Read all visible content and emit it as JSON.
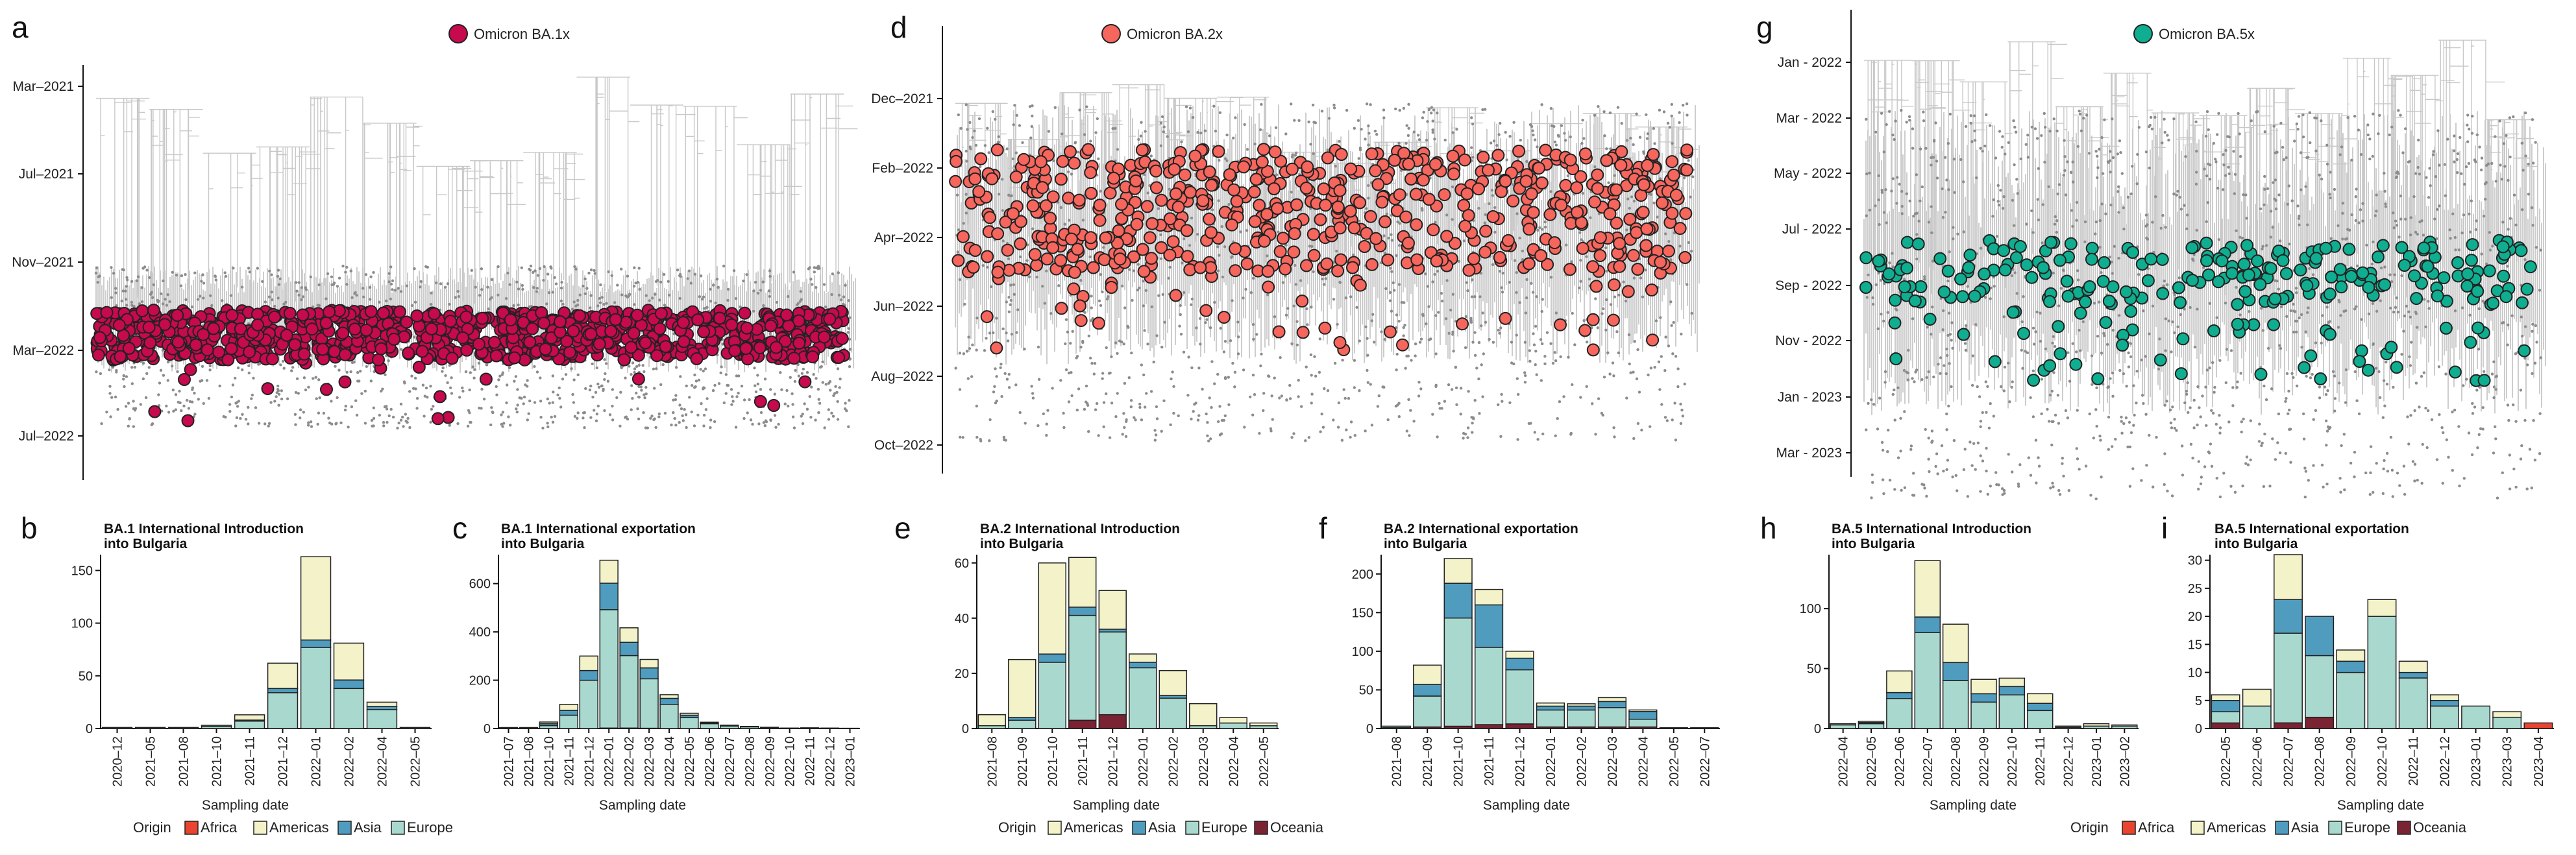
{
  "colors": {
    "Africa": "#e8442f",
    "Americas": "#f3f2c9",
    "Asia": "#4f9cbf",
    "Europe": "#a9d8ce",
    "Oceania": "#7a2333",
    "BA1": "#c7094e",
    "BA2": "#f6665d",
    "BA5": "#0fae90",
    "tree": "#c8c8c8",
    "tip": "#8c8c8c"
  },
  "trees": [
    {
      "letter": "a",
      "legend": "Omicron BA.1x",
      "colorKey": "BA1",
      "ticks": [
        "Mar–2021",
        "Jul–2021",
        "Nov–2021",
        "Mar–2022",
        "Jul–2022"
      ]
    },
    {
      "letter": "d",
      "legend": "Omicron BA.2x",
      "colorKey": "BA2",
      "ticks": [
        "Dec–2021",
        "Feb–2022",
        "Apr–2022",
        "Jun–2022",
        "Aug–2022",
        "Oct–2022"
      ]
    },
    {
      "letter": "g",
      "legend": "Omicron BA.5x",
      "colorKey": "BA5",
      "ticks": [
        "Jan - 2022",
        "Mar - 2022",
        "May - 2022",
        "Jul - 2022",
        "Sep - 2022",
        "Nov - 2022",
        "Jan - 2023",
        "Mar - 2023"
      ]
    }
  ],
  "legend_sets": {
    "abc": {
      "title": "Origin",
      "items": [
        "Africa",
        "Americas",
        "Asia",
        "Europe"
      ]
    },
    "def": {
      "title": "Origin",
      "items": [
        "Americas",
        "Asia",
        "Europe",
        "Oceania"
      ]
    },
    "ghi": {
      "title": "Origin",
      "items": [
        "Africa",
        "Americas",
        "Asia",
        "Europe",
        "Oceania"
      ]
    }
  },
  "xlabel": "Sampling date",
  "chart_data": [
    {
      "letter": "b",
      "type": "bar",
      "stacked": true,
      "title": "BA.1 International Introduction",
      "subtitle": "into Bulgaria",
      "xlabel": "Sampling date",
      "ylim": [
        0,
        165
      ],
      "yticks": [
        0,
        50,
        100,
        150
      ],
      "categories": [
        "2020–12",
        "2021–05",
        "2021–08",
        "2021–10",
        "2021–11",
        "2021–12",
        "2022–01",
        "2022–02",
        "2022–04",
        "2022–05"
      ],
      "series": [
        {
          "name": "Africa",
          "values": [
            0,
            0,
            0,
            0,
            0,
            0,
            0,
            0,
            0,
            0
          ]
        },
        {
          "name": "Europe",
          "values": [
            1,
            1,
            1,
            2,
            7,
            34,
            77,
            38,
            18,
            1
          ]
        },
        {
          "name": "Asia",
          "values": [
            0,
            0,
            0,
            0,
            1,
            4,
            7,
            8,
            3,
            0
          ]
        },
        {
          "name": "Americas",
          "values": [
            0,
            0,
            0,
            1,
            5,
            24,
            79,
            35,
            4,
            0
          ]
        }
      ]
    },
    {
      "letter": "c",
      "type": "bar",
      "stacked": true,
      "title": "BA.1 International exportation",
      "subtitle": "into Bulgaria",
      "xlabel": "Sampling date",
      "ylim": [
        0,
        720
      ],
      "yticks": [
        0,
        200,
        400,
        600
      ],
      "categories": [
        "2021–07",
        "2021–08",
        "2021–10",
        "2021–11",
        "2021–12",
        "2022–01",
        "2022–02",
        "2022–03",
        "2022–04",
        "2022–05",
        "2022–06",
        "2022–07",
        "2022–08",
        "2022–09",
        "2022–10",
        "2022–11",
        "2022–12",
        "2023–01"
      ],
      "series": [
        {
          "name": "Africa",
          "values": [
            0,
            0,
            0,
            0,
            0,
            2,
            2,
            1,
            0,
            0,
            0,
            0,
            0,
            0,
            0,
            0,
            0,
            0
          ]
        },
        {
          "name": "Europe",
          "values": [
            3,
            3,
            12,
            55,
            200,
            490,
            300,
            205,
            100,
            45,
            20,
            10,
            7,
            4,
            2,
            3,
            2,
            1
          ]
        },
        {
          "name": "Asia",
          "values": [
            0,
            0,
            8,
            20,
            40,
            110,
            55,
            45,
            25,
            10,
            3,
            2,
            1,
            0,
            0,
            0,
            0,
            0
          ]
        },
        {
          "name": "Americas",
          "values": [
            1,
            1,
            7,
            25,
            60,
            95,
            60,
            35,
            15,
            8,
            3,
            2,
            1,
            1,
            0,
            0,
            0,
            0
          ]
        }
      ]
    },
    {
      "letter": "e",
      "type": "bar",
      "stacked": true,
      "title": "BA.2 International Introduction",
      "subtitle": "into Bulgaria",
      "xlabel": "Sampling date",
      "ylim": [
        0,
        63
      ],
      "yticks": [
        0,
        20,
        40,
        60
      ],
      "categories": [
        "2021–08",
        "2021–09",
        "2021–10",
        "2021–11",
        "2021–12",
        "2022–01",
        "2022–02",
        "2022–03",
        "2022–04",
        "2022–05"
      ],
      "series": [
        {
          "name": "Oceania",
          "values": [
            0,
            0,
            0,
            3,
            5,
            0,
            0,
            0,
            0,
            0
          ]
        },
        {
          "name": "Europe",
          "values": [
            1,
            3,
            24,
            38,
            30,
            22,
            11,
            1,
            2,
            1
          ]
        },
        {
          "name": "Asia",
          "values": [
            0,
            1,
            3,
            3,
            1,
            2,
            1,
            0,
            0,
            0
          ]
        },
        {
          "name": "Americas",
          "values": [
            4,
            21,
            33,
            18,
            14,
            3,
            9,
            8,
            2,
            1
          ]
        }
      ]
    },
    {
      "letter": "f",
      "type": "bar",
      "stacked": true,
      "title": "BA.2 International exportation",
      "subtitle": "into Bulgaria",
      "xlabel": "Sampling date",
      "ylim": [
        0,
        225
      ],
      "yticks": [
        0,
        50,
        100,
        150,
        200
      ],
      "categories": [
        "2021–08",
        "2021–09",
        "2021–10",
        "2021–11",
        "2021–12",
        "2022–01",
        "2022–02",
        "2022–03",
        "2022–04",
        "2022–05",
        "2022–07"
      ],
      "series": [
        {
          "name": "Oceania",
          "values": [
            1,
            2,
            3,
            5,
            6,
            2,
            2,
            2,
            2,
            0,
            0
          ]
        },
        {
          "name": "Europe",
          "values": [
            2,
            40,
            140,
            100,
            70,
            22,
            22,
            25,
            10,
            1,
            1
          ]
        },
        {
          "name": "Asia",
          "values": [
            0,
            15,
            45,
            55,
            15,
            5,
            5,
            8,
            10,
            0,
            0
          ]
        },
        {
          "name": "Americas",
          "values": [
            0,
            25,
            32,
            20,
            9,
            4,
            3,
            5,
            2,
            0,
            0
          ]
        }
      ]
    },
    {
      "letter": "h",
      "type": "bar",
      "stacked": true,
      "title": "BA.5 International Introduction",
      "subtitle": "into Bulgaria",
      "xlabel": "Sampling date",
      "ylim": [
        0,
        145
      ],
      "yticks": [
        0,
        50,
        100
      ],
      "categories": [
        "2022–04",
        "2022–05",
        "2022–06",
        "2022–07",
        "2022–08",
        "2022–09",
        "2022–10",
        "2022–11",
        "2022–12",
        "2023–01",
        "2023–02"
      ],
      "series": [
        {
          "name": "Europe",
          "values": [
            3,
            4,
            25,
            80,
            40,
            22,
            28,
            15,
            1,
            2,
            2
          ]
        },
        {
          "name": "Asia",
          "values": [
            0,
            1,
            5,
            13,
            15,
            7,
            7,
            6,
            0,
            0,
            0
          ]
        },
        {
          "name": "Americas",
          "values": [
            1,
            1,
            18,
            47,
            32,
            12,
            7,
            8,
            1,
            2,
            1
          ]
        }
      ]
    },
    {
      "letter": "i",
      "type": "bar",
      "stacked": true,
      "title": "BA.5 International exportation",
      "subtitle": "into Bulgaria",
      "xlabel": "Sampling date",
      "ylim": [
        0,
        31
      ],
      "yticks": [
        0,
        5,
        10,
        15,
        20,
        25,
        30
      ],
      "categories": [
        "2022–05",
        "2022–06",
        "2022–07",
        "2022–08",
        "2022–09",
        "2022–10",
        "2022–11",
        "2022–12",
        "2023–01",
        "2023–03",
        "2023–04"
      ],
      "series": [
        {
          "name": "Africa",
          "values": [
            0,
            0,
            0,
            0,
            0,
            0,
            0,
            0,
            0,
            0,
            1
          ]
        },
        {
          "name": "Oceania",
          "values": [
            1,
            0,
            1,
            2,
            0,
            0,
            0,
            0,
            0,
            0,
            0
          ]
        },
        {
          "name": "Europe",
          "values": [
            2,
            4,
            16,
            11,
            10,
            20,
            9,
            4,
            4,
            2,
            0
          ]
        },
        {
          "name": "Asia",
          "values": [
            2,
            0,
            6,
            7,
            2,
            0,
            1,
            1,
            0,
            0,
            0
          ]
        },
        {
          "name": "Americas",
          "values": [
            1,
            3,
            8,
            0,
            2,
            3,
            2,
            1,
            0,
            1,
            0
          ]
        }
      ]
    }
  ]
}
